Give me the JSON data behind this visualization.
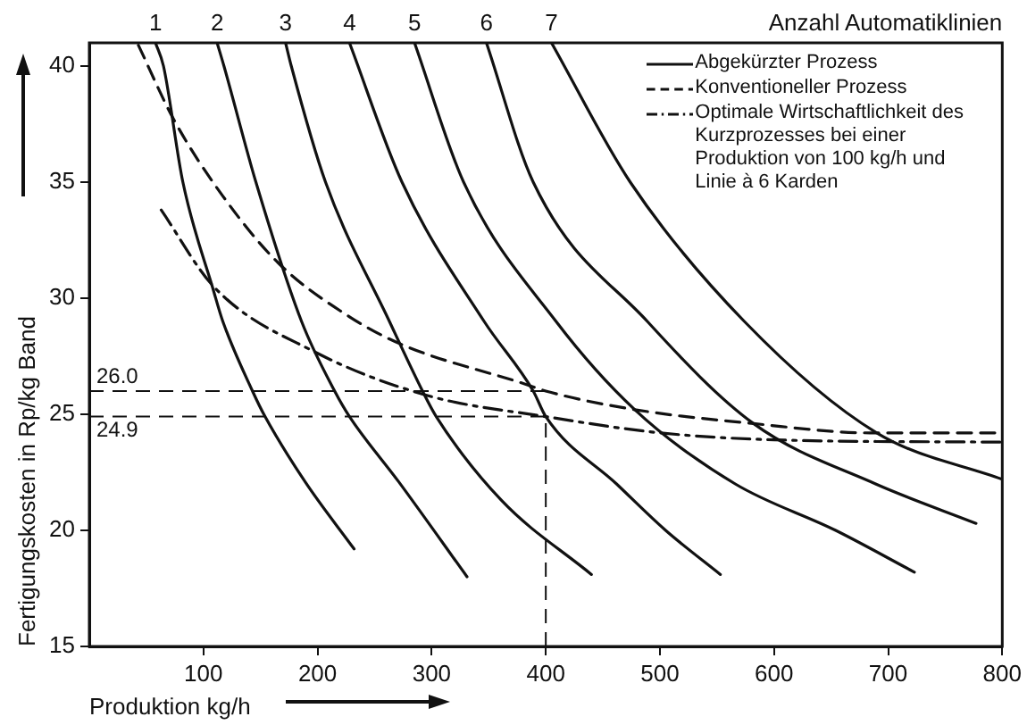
{
  "chart_data": {
    "type": "line",
    "xlabel": "Produktion kg/h",
    "ylabel": "Fertigungskosten in Rp/kg Band",
    "xlim": [
      0,
      800
    ],
    "xticks": [
      100,
      200,
      300,
      400,
      500,
      600,
      700,
      800
    ],
    "ylim": [
      15,
      41
    ],
    "yticks": [
      15,
      20,
      25,
      30,
      35,
      40
    ],
    "grid": false,
    "legend": "top right",
    "marker": "none",
    "series": [
      {
        "name": "Abgekürzter Prozess",
        "color": "#111111",
        "line_style": "solid",
        "x": [
          58,
          65,
          82,
          109,
          117,
          143,
          154,
          189,
          232
        ],
        "values": [
          41,
          40,
          35,
          30.3,
          29,
          26,
          24.9,
          22.1,
          19.2
        ]
      },
      {
        "color": "#111111",
        "line_style": "solid",
        "x": [
          112,
          118,
          146,
          186,
          215,
          228,
          271,
          331
        ],
        "values": [
          41,
          40,
          35,
          29,
          26,
          24.9,
          22.1,
          18
        ]
      },
      {
        "color": "#111111",
        "line_style": "solid",
        "x": [
          172,
          177,
          207,
          263,
          292,
          304,
          361,
          440
        ],
        "values": [
          41,
          40,
          35,
          29,
          26,
          24.9,
          21.3,
          18.1
        ]
      },
      {
        "color": "#111111",
        "line_style": "solid",
        "x": [
          228,
          274,
          346,
          389,
          400,
          462,
          505,
          553
        ],
        "values": [
          41,
          35,
          29,
          26,
          24.9,
          22,
          20,
          18.1
        ]
      },
      {
        "color": "#111111",
        "line_style": "solid",
        "x": [
          285,
          328,
          409,
          478,
          566,
          654,
          723
        ],
        "values": [
          41,
          35,
          29,
          25.2,
          22,
          20,
          18.2
        ]
      },
      {
        "color": "#111111",
        "line_style": "solid",
        "x": [
          348,
          389,
          489,
          582,
          689,
          777
        ],
        "values": [
          41,
          35,
          29,
          24.6,
          22,
          20.3
        ]
      },
      {
        "color": "#111111",
        "line_style": "solid",
        "x": [
          405,
          474,
          574,
          690,
          800
        ],
        "values": [
          41,
          35,
          29,
          24.2,
          22.2
        ]
      },
      {
        "name": "Konventioneller Prozess",
        "color": "#111111",
        "line_style": "dashed",
        "x": [
          43,
          74,
          117,
          166,
          228,
          274,
          382,
          400,
          478,
          582,
          684,
          800
        ],
        "values": [
          40.9,
          37.7,
          34.4,
          31.5,
          29.2,
          28,
          26.3,
          26,
          25.2,
          24.6,
          24.2,
          24.2
        ]
      },
      {
        "name": "Optimale Wirtschaftlichkeit des Kurzprozesses bei einer Produktion von 100 kg/h und Linie à 6 Karden",
        "color": "#111111",
        "line_style": "dashdot",
        "x": [
          63,
          109,
          197,
          297,
          400,
          500,
          600,
          800
        ],
        "values": [
          33.8,
          30.5,
          27.7,
          25.8,
          24.9,
          24.2,
          23.9,
          23.8
        ]
      }
    ],
    "ref_lines": [
      {
        "axis": "y",
        "value": 26.0,
        "label": "26.0",
        "line_style": "dashed"
      },
      {
        "axis": "y",
        "value": 24.9,
        "label": "24.9",
        "line_style": "dashed"
      },
      {
        "axis": "x",
        "value": 400,
        "label": null,
        "line_style": "dashed"
      }
    ],
    "annotations": [
      "Anzahl Automatiklinien",
      {
        "text": "1",
        "x": 58,
        "y": 41
      },
      {
        "text": "2",
        "x": 112,
        "y": 41
      },
      {
        "text": "3",
        "x": 172,
        "y": 41
      },
      {
        "text": "4",
        "x": 228,
        "y": 41
      },
      {
        "text": "5",
        "x": 285,
        "y": 41
      },
      {
        "text": "6",
        "x": 348,
        "y": 41
      },
      {
        "text": "7",
        "x": 405,
        "y": 41
      }
    ]
  }
}
